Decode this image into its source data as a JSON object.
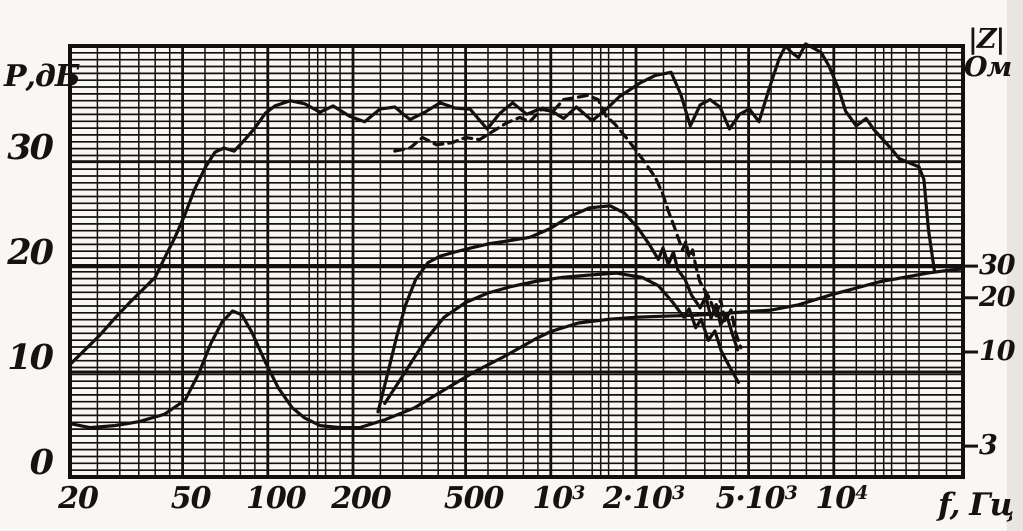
{
  "figure": {
    "paper_color": "#f8f7f3",
    "ink_color": "#121110",
    "description": "scanned loudspeaker measurement chart: sound pressure frequency response and impedance modulus on logarithmic frequency grid"
  },
  "chart_data": {
    "type": "line",
    "title": "",
    "x_axis": {
      "label": "f, Гц",
      "scale": "log",
      "min_hz": 20,
      "max_hz": 28600,
      "ticks": [
        {
          "f": 20,
          "t": "20",
          "s": ""
        },
        {
          "f": 50,
          "t": "50",
          "s": ""
        },
        {
          "f": 100,
          "t": "100",
          "s": ""
        },
        {
          "f": 200,
          "t": "200",
          "s": ""
        },
        {
          "f": 500,
          "t": "500",
          "s": ""
        },
        {
          "f": 1000,
          "t": "10",
          "s": "3"
        },
        {
          "f": 2000,
          "t": "2·10",
          "s": "3"
        },
        {
          "f": 5000,
          "t": "5·10",
          "s": "3"
        },
        {
          "f": 10000,
          "t": "10",
          "s": "4"
        }
      ],
      "minor_multipliers": [
        1.2,
        1.4,
        1.5,
        1.6,
        1.8,
        2,
        2.5,
        3,
        3.5,
        4,
        4.5,
        5,
        6,
        7,
        8,
        9
      ],
      "grid": true
    },
    "y_left": {
      "label": "Р,дБ",
      "scale": "linear",
      "min": 0,
      "max": 41,
      "ticks": [
        0,
        10,
        20,
        30
      ],
      "minor_count": 63,
      "grid": true
    },
    "y_right": {
      "label_top": "|Z|",
      "label_unit": "Ом",
      "scale": "log",
      "ticks": [
        3,
        10,
        20,
        30
      ]
    },
    "legend_position": "none",
    "series": [
      {
        "name": "spl-response-main",
        "axis": "db",
        "dashed": false,
        "points": [
          [
            20,
            10.7
          ],
          [
            22.6,
            12.1
          ],
          [
            25.5,
            13.5
          ],
          [
            28.8,
            15.1
          ],
          [
            32.5,
            16.6
          ],
          [
            36.7,
            18
          ],
          [
            40,
            19
          ],
          [
            43.3,
            20.9
          ],
          [
            47,
            22.8
          ],
          [
            51,
            25
          ],
          [
            55,
            27.3
          ],
          [
            60,
            29.4
          ],
          [
            65,
            30.9
          ],
          [
            70,
            31.3
          ],
          [
            76,
            31
          ],
          [
            83,
            32.1
          ],
          [
            90,
            33.2
          ],
          [
            98,
            34.6
          ],
          [
            106,
            35.3
          ],
          [
            120,
            35.8
          ],
          [
            135,
            35.5
          ],
          [
            153,
            34.7
          ],
          [
            170,
            35.3
          ],
          [
            195,
            34.3
          ],
          [
            220,
            33.8
          ],
          [
            249,
            35
          ],
          [
            281,
            35.2
          ],
          [
            318,
            34
          ],
          [
            359,
            34.7
          ],
          [
            406,
            35.6
          ],
          [
            458,
            35.1
          ],
          [
            518,
            35
          ],
          [
            596,
            33.1
          ],
          [
            661,
            34.6
          ],
          [
            733,
            35.6
          ],
          [
            822,
            34.5
          ],
          [
            911,
            35
          ],
          [
            1010,
            34.8
          ],
          [
            1110,
            34.1
          ],
          [
            1230,
            35.2
          ],
          [
            1400,
            33.9
          ],
          [
            1570,
            35
          ],
          [
            1750,
            36.2
          ],
          [
            2070,
            37.5
          ],
          [
            2340,
            38.2
          ],
          [
            2660,
            38.5
          ],
          [
            2880,
            36.4
          ],
          [
            3110,
            33.4
          ],
          [
            3370,
            35.4
          ],
          [
            3650,
            35.9
          ],
          [
            3960,
            35.2
          ],
          [
            4280,
            33.1
          ],
          [
            4640,
            34.5
          ],
          [
            5030,
            35
          ],
          [
            5440,
            33.8
          ],
          [
            5900,
            36.9
          ],
          [
            6390,
            39.7
          ],
          [
            6750,
            41
          ],
          [
            7080,
            40.4
          ],
          [
            7500,
            39.9
          ],
          [
            7950,
            41.2
          ],
          [
            8470,
            40.8
          ],
          [
            9010,
            40.4
          ],
          [
            9610,
            39.1
          ],
          [
            10400,
            36.9
          ],
          [
            11000,
            34.8
          ],
          [
            12000,
            33.4
          ],
          [
            13000,
            34.1
          ],
          [
            13900,
            33
          ],
          [
            14800,
            32.2
          ],
          [
            16100,
            31.1
          ],
          [
            17000,
            30.3
          ],
          [
            18400,
            29.9
          ],
          [
            20000,
            29.5
          ],
          [
            20800,
            28.3
          ],
          [
            21600,
            23.5
          ],
          [
            22700,
            19.5
          ]
        ]
      },
      {
        "name": "spl-response-dashed",
        "axis": "db",
        "dashed": true,
        "points": [
          [
            281,
            31
          ],
          [
            318,
            31.3
          ],
          [
            352,
            32.3
          ],
          [
            394,
            31.6
          ],
          [
            447,
            31.8
          ],
          [
            500,
            32.3
          ],
          [
            560,
            32.1
          ],
          [
            634,
            33
          ],
          [
            700,
            33.7
          ],
          [
            777,
            34.2
          ],
          [
            843,
            33.8
          ],
          [
            936,
            35.1
          ],
          [
            1010,
            34.7
          ],
          [
            1110,
            35.9
          ],
          [
            1230,
            36.1
          ],
          [
            1350,
            36.3
          ],
          [
            1470,
            35.9
          ],
          [
            1570,
            34.3
          ],
          [
            1680,
            33.6
          ],
          [
            1820,
            32.5
          ],
          [
            1970,
            31.3
          ],
          [
            2140,
            30
          ],
          [
            2340,
            28.5
          ],
          [
            2480,
            27
          ],
          [
            2600,
            25.3
          ],
          [
            2730,
            23.8
          ],
          [
            2830,
            22.6
          ],
          [
            2920,
            21.6
          ],
          [
            3000,
            22.4
          ],
          [
            3080,
            20.9
          ],
          [
            3170,
            21.6
          ],
          [
            3250,
            20.1
          ],
          [
            3360,
            18.6
          ],
          [
            3650,
            16.9
          ],
          [
            3840,
            15.3
          ],
          [
            3980,
            16.9
          ],
          [
            4120,
            14.8
          ],
          [
            4330,
            15.9
          ],
          [
            4490,
            13.8
          ],
          [
            4690,
            12.3
          ]
        ]
      },
      {
        "name": "driver-response-a",
        "axis": "db",
        "dashed": false,
        "points": [
          [
            245,
            6.2
          ],
          [
            266,
            10
          ],
          [
            285,
            13.3
          ],
          [
            307,
            16.4
          ],
          [
            333,
            18.8
          ],
          [
            368,
            20.4
          ],
          [
            406,
            21
          ],
          [
            458,
            21.4
          ],
          [
            525,
            21.8
          ],
          [
            608,
            22.2
          ],
          [
            719,
            22.5
          ],
          [
            843,
            22.8
          ],
          [
            990,
            23.6
          ],
          [
            1170,
            24.8
          ],
          [
            1370,
            25.6
          ],
          [
            1620,
            25.8
          ],
          [
            1820,
            25.1
          ],
          [
            2030,
            23.7
          ],
          [
            2230,
            22.1
          ],
          [
            2400,
            20.7
          ],
          [
            2490,
            21.8
          ],
          [
            2600,
            20.2
          ],
          [
            2710,
            21.4
          ],
          [
            2810,
            19.7
          ],
          [
            2980,
            18.8
          ],
          [
            3140,
            17.3
          ],
          [
            3370,
            16.1
          ],
          [
            3530,
            17.2
          ],
          [
            3680,
            15.1
          ],
          [
            3840,
            16.4
          ],
          [
            3980,
            14.5
          ],
          [
            4180,
            15.4
          ],
          [
            4390,
            13.5
          ],
          [
            4570,
            12.1
          ]
        ]
      },
      {
        "name": "driver-response-b",
        "axis": "db",
        "dashed": false,
        "points": [
          [
            259,
            7
          ],
          [
            306,
            10
          ],
          [
            360,
            13
          ],
          [
            420,
            15.2
          ],
          [
            500,
            16.6
          ],
          [
            600,
            17.5
          ],
          [
            720,
            18.1
          ],
          [
            880,
            18.6
          ],
          [
            1100,
            19
          ],
          [
            1350,
            19.2
          ],
          [
            1700,
            19.4
          ],
          [
            2100,
            19
          ],
          [
            2400,
            18.2
          ],
          [
            2700,
            16.6
          ],
          [
            2950,
            15.2
          ],
          [
            3080,
            16
          ],
          [
            3250,
            14.2
          ],
          [
            3400,
            15
          ],
          [
            3600,
            13
          ],
          [
            3800,
            13.9
          ],
          [
            4000,
            12
          ],
          [
            4300,
            10.4
          ],
          [
            4600,
            9
          ]
        ]
      },
      {
        "name": "impedance-modulus",
        "axis": "ohm",
        "dashed": false,
        "points": [
          [
            20,
            4
          ],
          [
            23.5,
            3.8
          ],
          [
            28.8,
            3.9
          ],
          [
            35,
            4.1
          ],
          [
            43,
            4.5
          ],
          [
            51,
            5.4
          ],
          [
            57,
            7.6
          ],
          [
            63,
            11.2
          ],
          [
            69,
            14.7
          ],
          [
            75,
            16.9
          ],
          [
            81,
            16.1
          ],
          [
            88,
            12.8
          ],
          [
            98,
            8.8
          ],
          [
            109,
            6.3
          ],
          [
            122,
            4.9
          ],
          [
            135,
            4.3
          ],
          [
            153,
            3.9
          ],
          [
            180,
            3.8
          ],
          [
            211,
            3.8
          ],
          [
            259,
            4.2
          ],
          [
            330,
            4.9
          ],
          [
            423,
            6.2
          ],
          [
            540,
            7.8
          ],
          [
            690,
            9.5
          ],
          [
            880,
            11.8
          ],
          [
            1000,
            13
          ],
          [
            1250,
            14.5
          ],
          [
            1600,
            15.2
          ],
          [
            2000,
            15.6
          ],
          [
            2500,
            15.8
          ],
          [
            3200,
            16
          ],
          [
            4000,
            16.3
          ],
          [
            4570,
            16.6
          ],
          [
            6000,
            17.1
          ],
          [
            7500,
            18.3
          ],
          [
            9700,
            20.7
          ],
          [
            14400,
            24.5
          ],
          [
            21600,
            27.5
          ],
          [
            25800,
            28.5
          ],
          [
            28600,
            29
          ]
        ]
      }
    ]
  }
}
